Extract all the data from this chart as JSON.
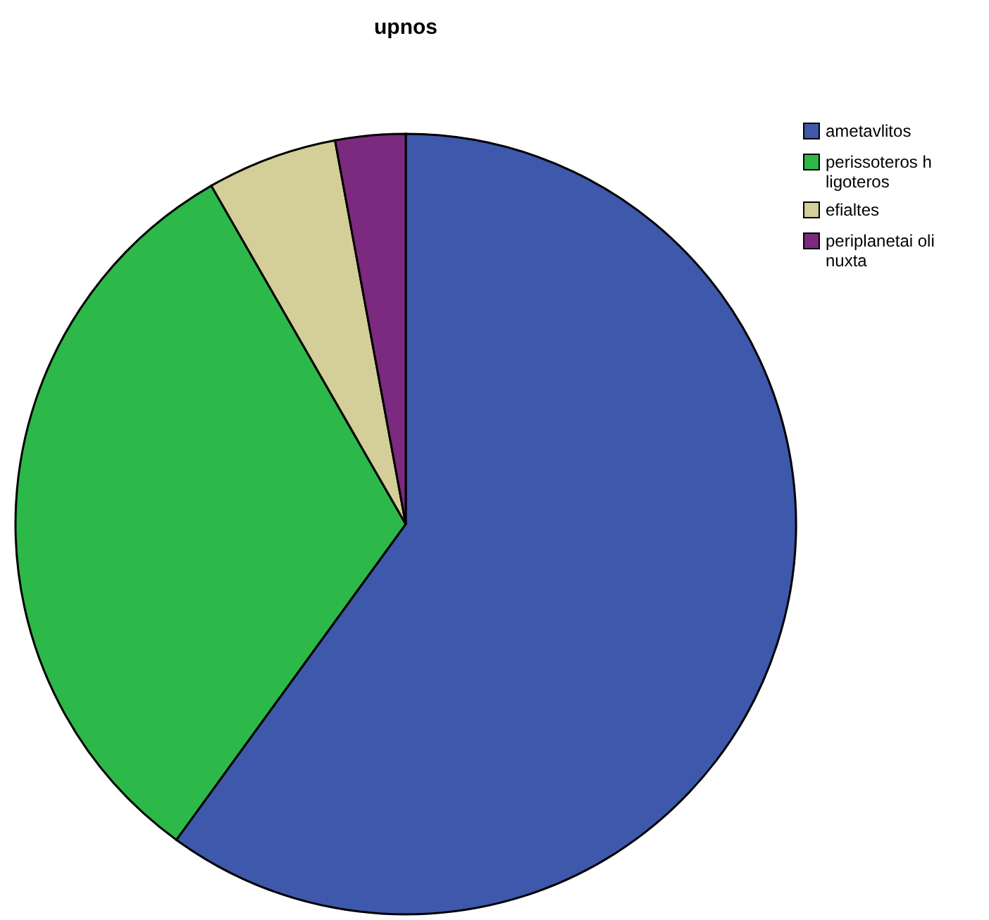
{
  "chart_data": {
    "type": "pie",
    "title": "upnos",
    "categories": [
      "ametavlitos",
      "perissoteros h ligoteros",
      "efialtes",
      "periplanetai oli nuxta"
    ],
    "values": [
      60,
      31.7,
      5.4,
      2.9
    ],
    "colors": [
      "#3e58ac",
      "#2db84a",
      "#d4cf98",
      "#7b2a7f"
    ],
    "legend": "top right"
  }
}
